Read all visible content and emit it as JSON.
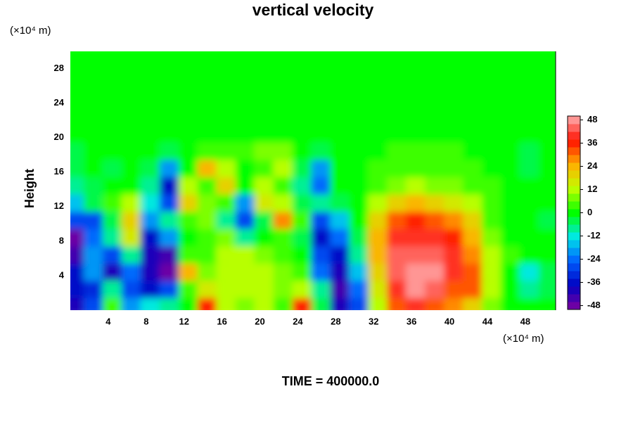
{
  "chart_data": {
    "type": "heatmap",
    "title": "vertical velocity",
    "y_unit": "(×10⁴ m)",
    "x_unit": "(×10⁴ m)",
    "ylabel": "Height",
    "footer": "TIME = 400000.0",
    "xlim": [
      0,
      51.2
    ],
    "ylim": [
      0,
      30
    ],
    "xticks": [
      4,
      8,
      12,
      16,
      20,
      24,
      28,
      32,
      36,
      40,
      44,
      48
    ],
    "yticks": [
      4,
      8,
      12,
      16,
      20,
      24,
      28
    ],
    "clim": [
      -50,
      50
    ],
    "cticks": [
      -48,
      -36,
      -24,
      -12,
      0,
      12,
      24,
      36,
      48
    ],
    "colors": [
      "#8000a0",
      "#0000c0",
      "#0060ff",
      "#00e8e8",
      "#00ff00",
      "#c0ff00",
      "#ffb000",
      "#ff1000",
      "#ffb0b0"
    ],
    "x": [
      1,
      3,
      5,
      7,
      9,
      11,
      13,
      15,
      17,
      19,
      21,
      23,
      25,
      27,
      29,
      31,
      33,
      35,
      37,
      39,
      41,
      43,
      45,
      47,
      49,
      51
    ],
    "y": [
      1,
      3,
      5,
      7,
      9,
      11,
      13,
      15,
      17,
      19,
      21,
      23,
      25,
      27,
      29
    ],
    "z": [
      [
        -40,
        -30,
        5,
        -20,
        -12,
        -8,
        0,
        35,
        10,
        8,
        10,
        5,
        35,
        -5,
        -40,
        -30,
        12,
        30,
        38,
        30,
        28,
        20,
        8,
        0,
        -2,
        -2
      ],
      [
        -38,
        -32,
        -10,
        -30,
        -35,
        -30,
        5,
        15,
        12,
        10,
        12,
        8,
        10,
        -10,
        -45,
        -25,
        15,
        38,
        48,
        45,
        30,
        30,
        10,
        0,
        -8,
        -4
      ],
      [
        -35,
        -20,
        -40,
        -25,
        -40,
        -50,
        25,
        8,
        10,
        12,
        10,
        6,
        5,
        -25,
        -42,
        -15,
        20,
        42,
        48,
        48,
        38,
        30,
        12,
        0,
        -12,
        -4
      ],
      [
        -45,
        -20,
        -30,
        -10,
        -40,
        -45,
        5,
        5,
        10,
        10,
        8,
        4,
        0,
        -30,
        -35,
        -8,
        25,
        45,
        45,
        42,
        40,
        28,
        10,
        2,
        -2,
        -2
      ],
      [
        -48,
        -25,
        -10,
        15,
        -35,
        -20,
        0,
        5,
        8,
        -10,
        0,
        5,
        -5,
        -35,
        -25,
        -5,
        22,
        40,
        40,
        38,
        35,
        22,
        8,
        0,
        0,
        -2
      ],
      [
        -30,
        -30,
        -5,
        18,
        -20,
        -10,
        5,
        8,
        -10,
        -30,
        -5,
        28,
        2,
        -30,
        -15,
        0,
        18,
        30,
        35,
        32,
        28,
        18,
        5,
        0,
        0,
        -4
      ],
      [
        -15,
        -5,
        5,
        10,
        -12,
        -30,
        20,
        8,
        2,
        -20,
        15,
        10,
        -5,
        -10,
        -5,
        0,
        10,
        18,
        22,
        20,
        15,
        10,
        3,
        0,
        0,
        -2
      ],
      [
        -8,
        -4,
        0,
        0,
        -10,
        -35,
        10,
        5,
        20,
        0,
        10,
        5,
        -10,
        -25,
        0,
        0,
        5,
        8,
        10,
        8,
        6,
        4,
        2,
        0,
        0,
        0
      ],
      [
        -4,
        -2,
        -6,
        0,
        -5,
        -20,
        -2,
        22,
        10,
        0,
        5,
        12,
        -5,
        -20,
        -2,
        0,
        2,
        4,
        4,
        4,
        3,
        2,
        0,
        0,
        -4,
        -2
      ],
      [
        -4,
        -2,
        -2,
        0,
        -2,
        -4,
        0,
        4,
        2,
        4,
        6,
        8,
        0,
        -6,
        -2,
        0,
        1,
        2,
        2,
        2,
        2,
        0,
        0,
        -2,
        -4,
        -2
      ],
      [
        -2,
        -2,
        -2,
        -2,
        -2,
        -2,
        -2,
        -2,
        -2,
        -2,
        -2,
        -2,
        -2,
        -2,
        -2,
        -2,
        -2,
        -2,
        -2,
        -2,
        -2,
        -2,
        -2,
        -2,
        -2,
        -2
      ],
      [
        -2,
        -2,
        -2,
        -2,
        -2,
        -2,
        -2,
        -2,
        -2,
        -2,
        -2,
        -2,
        -2,
        -2,
        -2,
        -2,
        -2,
        -2,
        -2,
        -2,
        -2,
        -2,
        -2,
        -2,
        -2,
        -2
      ],
      [
        -2,
        -2,
        -2,
        -2,
        -2,
        -2,
        -2,
        -2,
        -2,
        -2,
        -2,
        -2,
        -2,
        -2,
        -2,
        -2,
        -2,
        -2,
        -2,
        -2,
        -2,
        -2,
        -2,
        -2,
        -2,
        -2
      ],
      [
        -2,
        -2,
        -2,
        -2,
        -2,
        -2,
        -2,
        -2,
        -2,
        -2,
        -2,
        -2,
        -2,
        -2,
        -2,
        -2,
        -2,
        -2,
        -2,
        -2,
        -2,
        -2,
        -2,
        -2,
        -2,
        -2
      ],
      [
        -2,
        -2,
        -2,
        -2,
        -2,
        -2,
        -2,
        -2,
        -2,
        -2,
        -2,
        -2,
        -2,
        -2,
        -2,
        -2,
        -2,
        -2,
        -2,
        -2,
        -2,
        -2,
        -2,
        -2,
        -2,
        -2
      ]
    ]
  }
}
